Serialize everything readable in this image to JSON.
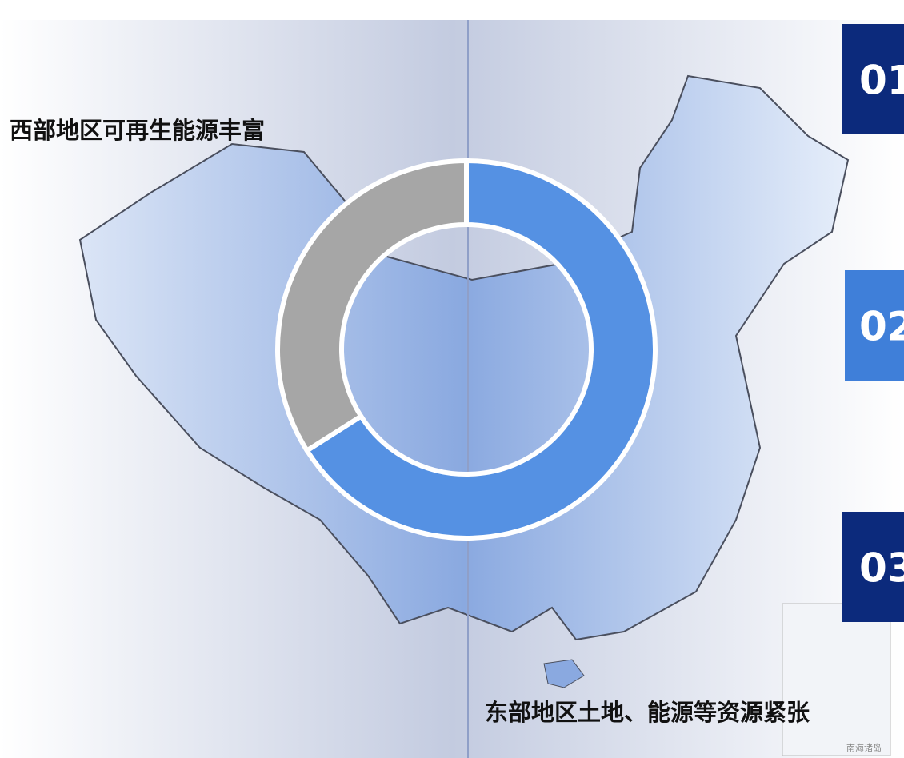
{
  "chart_data": {
    "type": "donut",
    "categories": [
      null,
      null
    ],
    "values": [
      66,
      34
    ],
    "colors": [
      "#5591e3",
      "#a6a6a6"
    ],
    "annotations": [
      "西部地区可再生能源丰富",
      "东部地区土地、能源等资源紧张"
    ],
    "items": [
      "01",
      "02",
      "03"
    ],
    "map_label": "南海诸岛"
  }
}
